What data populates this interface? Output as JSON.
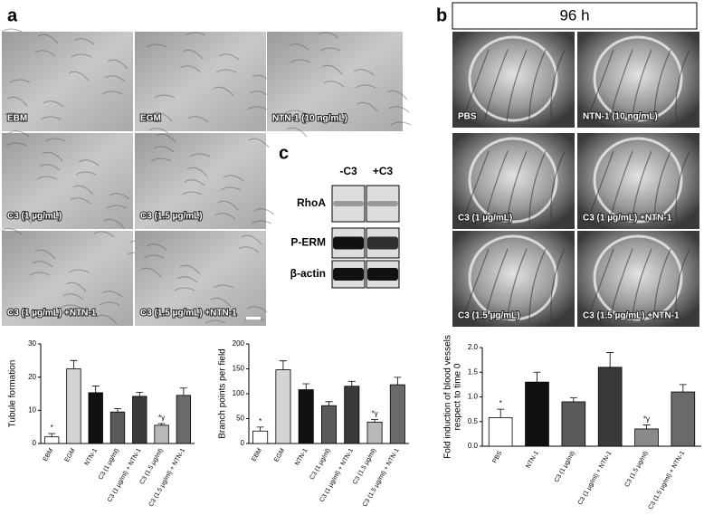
{
  "panels": {
    "a": "a",
    "b": "b",
    "c": "c",
    "time": "96 h"
  },
  "images_a": [
    "EBM",
    "EGM",
    "NTN-1 (10 ng/mL)",
    "C3 (1 µg/mL)",
    "C3 (1.5 µg/mL)",
    "C3  (1 µg/mL) +NTN-1",
    "C3  (1.5 µg/mL) +NTN-1"
  ],
  "images_b": [
    "PBS",
    "NTN-1 (10 ng/mL)",
    "C3 (1 µg/mL)",
    "C3  (1 µg/mL) +NTN-1",
    "C3 (1.5 µg/mL)",
    "C3  (1.5 µg/mL) +NTN-1"
  ],
  "blot": {
    "columns": [
      "-C3",
      "+C3"
    ],
    "rows": [
      "RhoA",
      "P-ERM",
      "β-actin"
    ]
  },
  "chart_data": [
    {
      "type": "bar",
      "ylabel": [
        "Tubule formation"
      ],
      "categories": [
        "EBM",
        "EGM",
        "NTN-1",
        "C3 (1 µg/ml)",
        "C3 (1 µg/ml) + NTN-1",
        "C3 (1.5 µg/ml)",
        "C3 (1.5 µg/ml) + NTN-1"
      ],
      "values": [
        2,
        22.5,
        15.3,
        9.5,
        14.2,
        5.5,
        14.5
      ],
      "errors": [
        1,
        2.5,
        2,
        1,
        1.2,
        0.5,
        2.2
      ],
      "value_annotations": [
        "*",
        null,
        null,
        null,
        null,
        "*γ",
        null
      ],
      "colors": [
        "#ffffff",
        "#d4d4d4",
        "#111111",
        "#5a5a5a",
        "#3a3a3a",
        "#b8b8b8",
        "#6a6a6a"
      ],
      "ylim": [
        0,
        30
      ],
      "yticks": [
        0,
        10,
        20,
        30
      ]
    },
    {
      "type": "bar",
      "ylabel": [
        "Branch points per field"
      ],
      "categories": [
        "EBM",
        "EGM",
        "NTN-1",
        "C3 (1 µg/ml)",
        "C3 (1 µg/ml) + NTN-1",
        "C3 (1.5 µg/ml)",
        "C3 (1.5 µg/ml) + NTN-1"
      ],
      "values": [
        25,
        148,
        108,
        76,
        115,
        43,
        118
      ],
      "errors": [
        8,
        18,
        12,
        8,
        10,
        5,
        15
      ],
      "value_annotations": [
        "*",
        null,
        null,
        null,
        null,
        "*γ",
        null
      ],
      "colors": [
        "#ffffff",
        "#d4d4d4",
        "#111111",
        "#5a5a5a",
        "#3a3a3a",
        "#b8b8b8",
        "#6a6a6a"
      ],
      "ylim": [
        0,
        200
      ],
      "yticks": [
        0,
        50,
        100,
        150,
        200
      ]
    },
    {
      "type": "bar",
      "ylabel": [
        "Fold induction of blood vessels",
        "respect to time 0"
      ],
      "categories": [
        "PBS",
        "NTN-1",
        "C3 (1 µg/ml)",
        "C3 (1 µg/ml) + NTN-1",
        "C3 (1.5 µg/ml)",
        "C3 (1.5 µg/ml) + NTN-1"
      ],
      "values": [
        0.58,
        1.3,
        0.9,
        1.6,
        0.35,
        1.1
      ],
      "errors": [
        0.17,
        0.2,
        0.08,
        0.3,
        0.08,
        0.15
      ],
      "value_annotations": [
        "*",
        null,
        null,
        null,
        "*γ",
        null
      ],
      "colors": [
        "#ffffff",
        "#111111",
        "#5a5a5a",
        "#3a3a3a",
        "#8a8a8a",
        "#6a6a6a"
      ],
      "ylim": [
        0,
        2
      ],
      "yticks": [
        {
          "value": 0,
          "label": "0.0"
        },
        {
          "value": 0.5,
          "label": "0.5"
        },
        {
          "value": 1,
          "label": "1.0"
        },
        {
          "value": 1.5,
          "label": "1.5"
        },
        {
          "value": 2,
          "label": "2.0"
        }
      ]
    }
  ]
}
